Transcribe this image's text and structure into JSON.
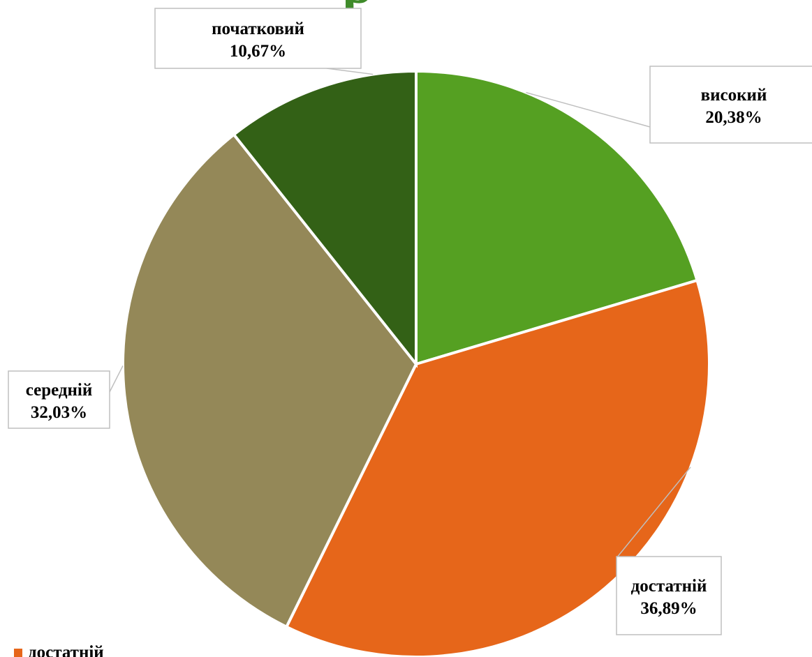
{
  "chart_data": {
    "type": "pie",
    "title": "",
    "categories": [
      "високий",
      "достатній",
      "середній",
      "початковий"
    ],
    "values": [
      20.38,
      36.89,
      32.03,
      10.67
    ],
    "value_labels": [
      "20,38%",
      "36,89%",
      "32,03%",
      "10,67%"
    ],
    "colors": [
      "#55a022",
      "#e6661a",
      "#948858",
      "#336116"
    ],
    "start_angle_deg": 0,
    "direction": "clockwise",
    "legend": {
      "placement": "bottom-left",
      "visible_entries": [
        "достатній"
      ]
    }
  },
  "title_fragment": "р",
  "legend_label": "достатній"
}
